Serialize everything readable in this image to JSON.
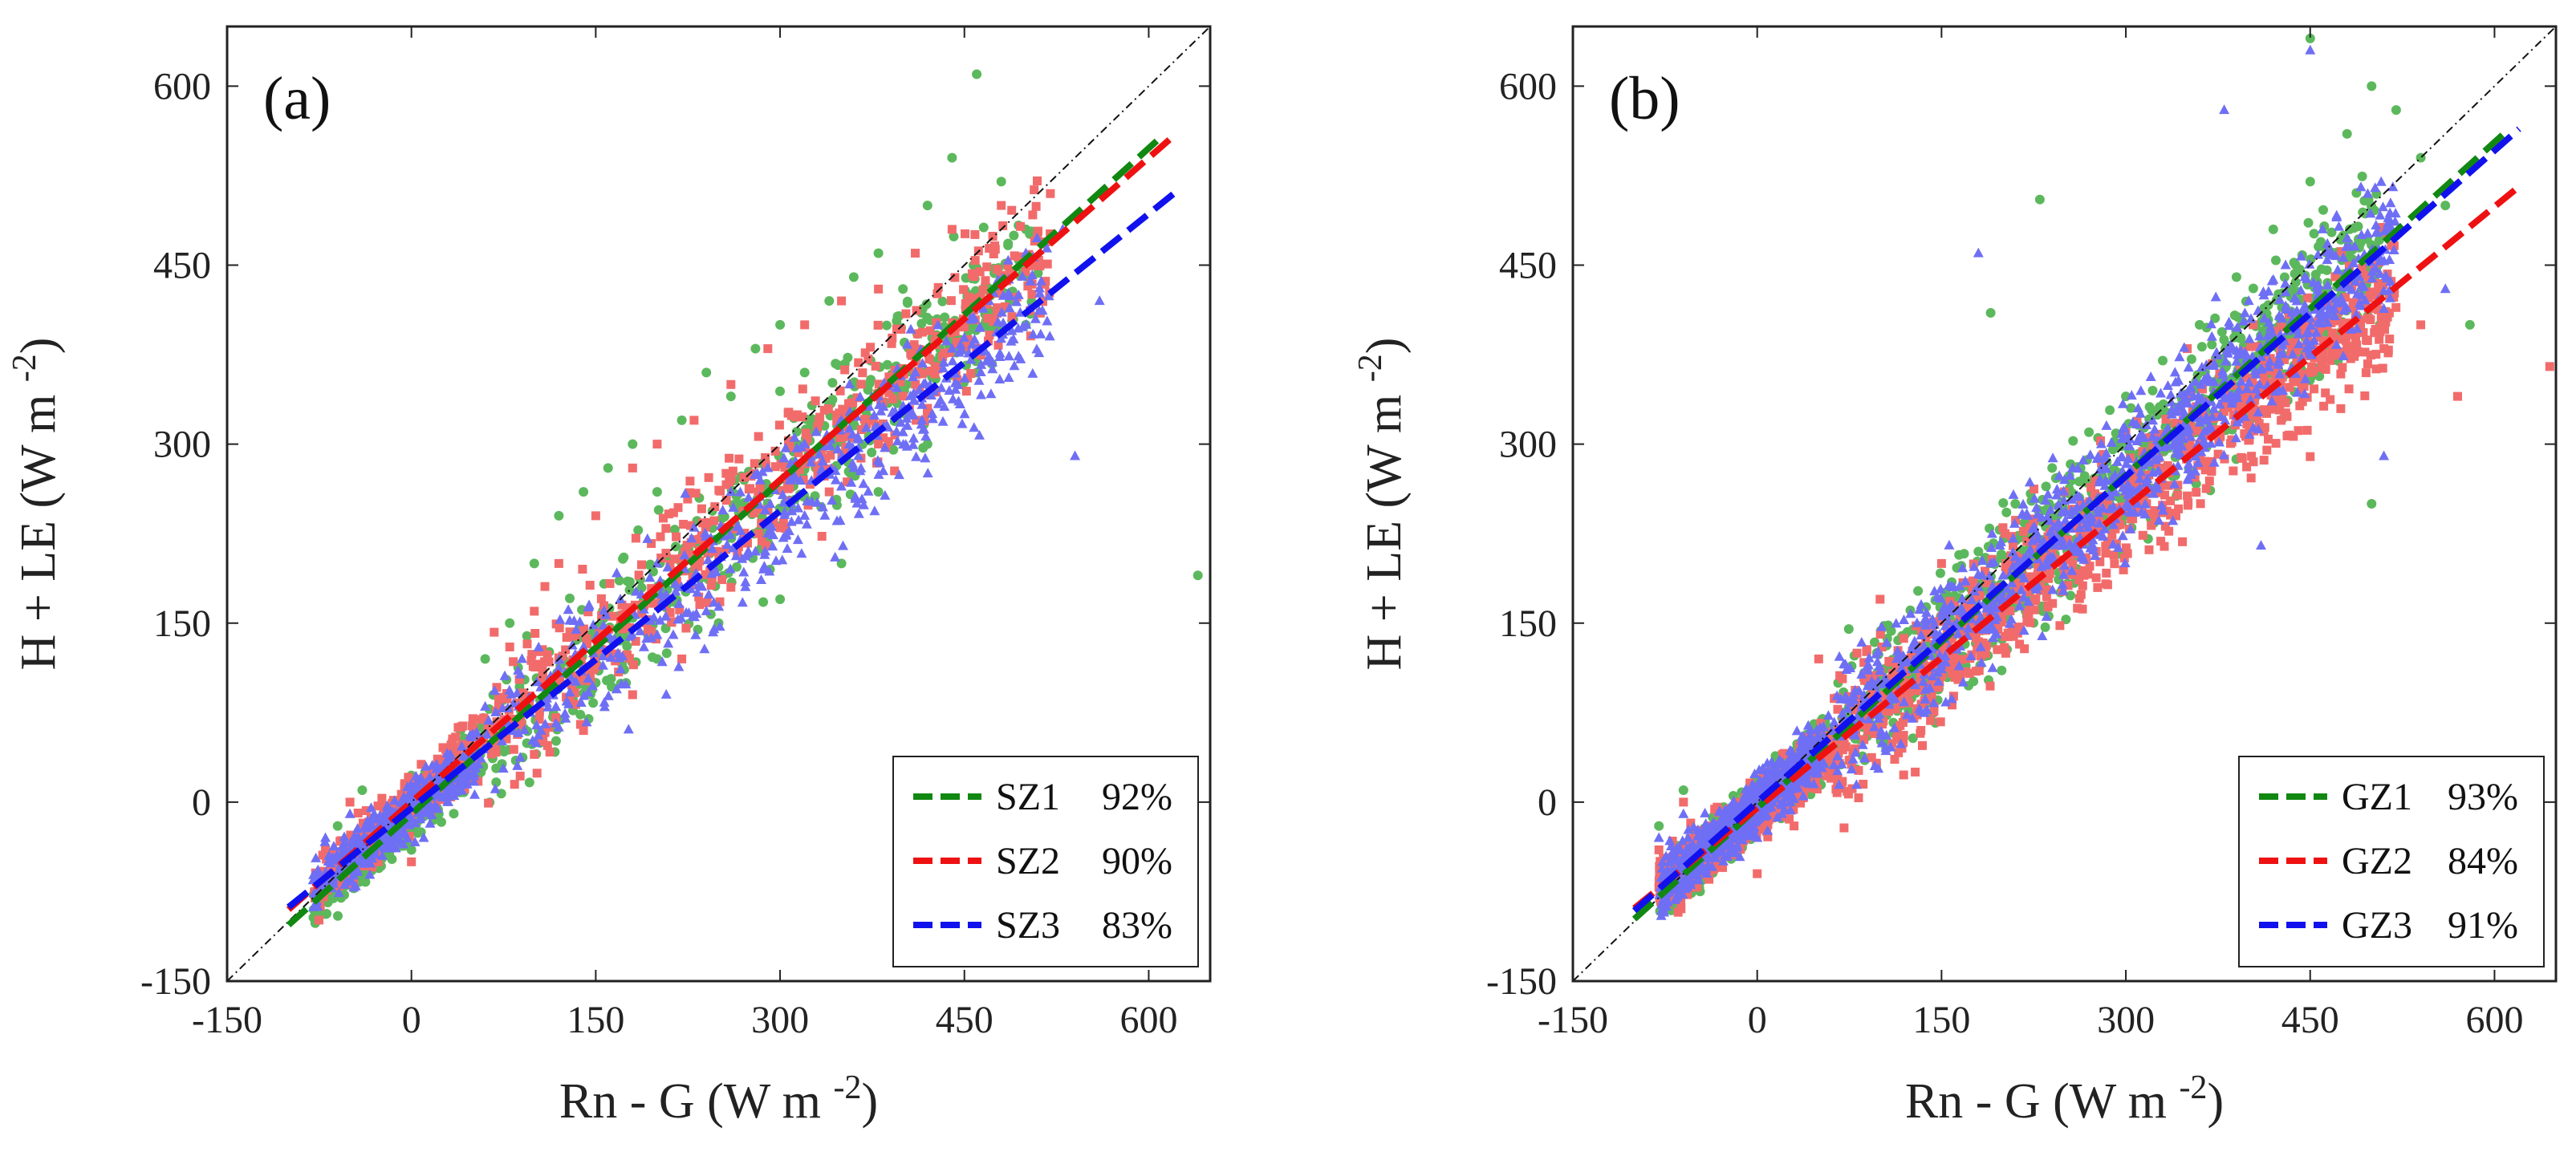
{
  "colors": {
    "scatter_green": "#5cb85c",
    "scatter_red": "#f26b6b",
    "scatter_blue": "#6f6ff5",
    "fit_green": "#118811",
    "fit_red": "#ee1111",
    "fit_blue": "#1111ee",
    "identity_line": "#111111"
  },
  "chart_data": [
    {
      "type": "scatter",
      "panel_label": "(a)",
      "xlabel": "Rn - G (W m",
      "xlabel_sup": "-2",
      "xlabel_close": ")",
      "ylabel": "H + LE (W m",
      "ylabel_sup": "-2",
      "ylabel_close": ")",
      "xlim": [
        -150,
        650
      ],
      "ylim": [
        -150,
        650
      ],
      "xticks": [
        -150,
        0,
        150,
        300,
        450,
        600
      ],
      "yticks": [
        -150,
        0,
        150,
        300,
        450,
        600
      ],
      "identity_line": true,
      "legend_position": "bottom-right",
      "series": [
        {
          "name": "SZ1",
          "percent": "92%",
          "marker": "circle",
          "point_color": "#5cb85c",
          "line_color": "#118811",
          "fit": {
            "slope": 0.93,
            "intercept": -10,
            "x_range": [
              -100,
              610
            ]
          },
          "points": [
            [
              -60,
              -20
            ],
            [
              -40,
              10
            ],
            [
              -20,
              -30
            ],
            [
              0,
              -40
            ],
            [
              20,
              -10
            ],
            [
              40,
              60
            ],
            [
              60,
              120
            ],
            [
              80,
              150
            ],
            [
              100,
              200
            ],
            [
              120,
              240
            ],
            [
              140,
              260
            ],
            [
              160,
              280
            ],
            [
              180,
              300
            ],
            [
              200,
              260
            ],
            [
              220,
              320
            ],
            [
              240,
              360
            ],
            [
              260,
              340
            ],
            [
              280,
              380
            ],
            [
              300,
              400
            ],
            [
              320,
              360
            ],
            [
              340,
              420
            ],
            [
              360,
              440
            ],
            [
              380,
              460
            ],
            [
              400,
              430
            ],
            [
              420,
              500
            ],
            [
              440,
              540
            ],
            [
              460,
              610
            ],
            [
              480,
              520
            ],
            [
              500,
              480
            ],
            [
              640,
              190
            ],
            [
              150,
              100
            ],
            [
              200,
              120
            ],
            [
              250,
              150
            ],
            [
              300,
              170
            ],
            [
              350,
              200
            ],
            [
              380,
              260
            ],
            [
              420,
              300
            ],
            [
              460,
              360
            ],
            [
              500,
              400
            ]
          ]
        },
        {
          "name": "SZ2",
          "percent": "90%",
          "marker": "square",
          "point_color": "#f26b6b",
          "line_color": "#ee1111",
          "fit": {
            "slope": 0.9,
            "intercept": 0,
            "x_range": [
              -100,
              620
            ]
          },
          "points": [
            [
              -70,
              -40
            ],
            [
              -50,
              0
            ],
            [
              -30,
              -20
            ],
            [
              0,
              -50
            ],
            [
              20,
              0
            ],
            [
              50,
              70
            ],
            [
              80,
              130
            ],
            [
              100,
              160
            ],
            [
              120,
              200
            ],
            [
              150,
              240
            ],
            [
              180,
              280
            ],
            [
              200,
              300
            ],
            [
              230,
              320
            ],
            [
              260,
              350
            ],
            [
              290,
              380
            ],
            [
              320,
              400
            ],
            [
              350,
              420
            ],
            [
              380,
              430
            ],
            [
              410,
              460
            ],
            [
              440,
              480
            ],
            [
              480,
              500
            ],
            [
              520,
              510
            ],
            [
              100,
              40
            ],
            [
              140,
              60
            ],
            [
              180,
              90
            ],
            [
              220,
              120
            ],
            [
              260,
              180
            ],
            [
              300,
              230
            ],
            [
              340,
              260
            ],
            [
              380,
              300
            ],
            [
              420,
              330
            ],
            [
              460,
              380
            ]
          ]
        },
        {
          "name": "SZ3",
          "percent": "83%",
          "marker": "triangle",
          "point_color": "#6f6ff5",
          "line_color": "#1111ee",
          "fit": {
            "slope": 0.83,
            "intercept": -5,
            "x_range": [
              -100,
              620
            ]
          },
          "points": [
            [
              -70,
              -30
            ],
            [
              -50,
              -10
            ],
            [
              -30,
              -40
            ],
            [
              -10,
              -20
            ],
            [
              10,
              -30
            ],
            [
              30,
              0
            ],
            [
              60,
              80
            ],
            [
              90,
              120
            ],
            [
              110,
              90
            ],
            [
              140,
              130
            ],
            [
              170,
              170
            ],
            [
              200,
              200
            ],
            [
              230,
              230
            ],
            [
              260,
              260
            ],
            [
              290,
              280
            ],
            [
              320,
              300
            ],
            [
              350,
              320
            ],
            [
              380,
              340
            ],
            [
              410,
              360
            ],
            [
              440,
              380
            ],
            [
              470,
              420
            ],
            [
              500,
              460
            ],
            [
              530,
              480
            ],
            [
              560,
              420
            ],
            [
              540,
              290
            ],
            [
              200,
              140
            ],
            [
              240,
              160
            ],
            [
              280,
              210
            ],
            [
              320,
              240
            ],
            [
              360,
              280
            ],
            [
              400,
              310
            ]
          ]
        }
      ]
    },
    {
      "type": "scatter",
      "panel_label": "(b)",
      "xlabel": "Rn - G (W m",
      "xlabel_sup": "-2",
      "xlabel_close": ")",
      "ylabel": "H + LE (W m",
      "ylabel_sup": "-2",
      "ylabel_close": ")",
      "xlim": [
        -150,
        650
      ],
      "ylim": [
        -150,
        650
      ],
      "xticks": [
        -150,
        0,
        150,
        300,
        450,
        600
      ],
      "yticks": [
        -150,
        0,
        150,
        300,
        450,
        600
      ],
      "identity_line": true,
      "legend_position": "bottom-right",
      "series": [
        {
          "name": "GZ1",
          "percent": "93%",
          "marker": "circle",
          "point_color": "#5cb85c",
          "line_color": "#118811",
          "fit": {
            "slope": 0.93,
            "intercept": -5,
            "x_range": [
              -100,
              610
            ]
          },
          "points": [
            [
              -80,
              -20
            ],
            [
              -60,
              10
            ],
            [
              -40,
              -30
            ],
            [
              0,
              -20
            ],
            [
              30,
              0
            ],
            [
              60,
              60
            ],
            [
              90,
              100
            ],
            [
              120,
              140
            ],
            [
              150,
              170
            ],
            [
              180,
              210
            ],
            [
              210,
              250
            ],
            [
              240,
              280
            ],
            [
              270,
              310
            ],
            [
              300,
              340
            ],
            [
              330,
              370
            ],
            [
              360,
              400
            ],
            [
              390,
              440
            ],
            [
              420,
              480
            ],
            [
              450,
              520
            ],
            [
              480,
              560
            ],
            [
              500,
              600
            ],
            [
              520,
              580
            ],
            [
              540,
              540
            ],
            [
              560,
              500
            ],
            [
              230,
              505
            ],
            [
              190,
              410
            ],
            [
              450,
              640
            ],
            [
              580,
              400
            ],
            [
              500,
              250
            ]
          ]
        },
        {
          "name": "GZ2",
          "percent": "84%",
          "marker": "square",
          "point_color": "#f26b6b",
          "line_color": "#ee1111",
          "fit": {
            "slope": 0.84,
            "intercept": -5,
            "x_range": [
              -100,
              620
            ]
          },
          "points": [
            [
              -80,
              -40
            ],
            [
              -60,
              0
            ],
            [
              -40,
              -20
            ],
            [
              0,
              -60
            ],
            [
              30,
              -20
            ],
            [
              60,
              20
            ],
            [
              90,
              60
            ],
            [
              120,
              100
            ],
            [
              150,
              120
            ],
            [
              180,
              150
            ],
            [
              210,
              180
            ],
            [
              240,
              200
            ],
            [
              270,
              230
            ],
            [
              300,
              260
            ],
            [
              330,
              280
            ],
            [
              360,
              300
            ],
            [
              390,
              320
            ],
            [
              420,
              340
            ],
            [
              450,
              360
            ],
            [
              480,
              380
            ],
            [
              510,
              380
            ],
            [
              540,
              400
            ],
            [
              570,
              340
            ],
            [
              645,
              365
            ],
            [
              50,
              120
            ],
            [
              100,
              170
            ],
            [
              150,
              200
            ],
            [
              200,
              230
            ],
            [
              250,
              260
            ],
            [
              300,
              310
            ],
            [
              350,
              380
            ]
          ]
        },
        {
          "name": "GZ3",
          "percent": "91%",
          "marker": "triangle",
          "point_color": "#6f6ff5",
          "line_color": "#1111ee",
          "fit": {
            "slope": 0.91,
            "intercept": 0,
            "x_range": [
              -100,
              620
            ]
          },
          "points": [
            [
              -80,
              -30
            ],
            [
              -60,
              -10
            ],
            [
              -40,
              -40
            ],
            [
              -20,
              -20
            ],
            [
              0,
              -30
            ],
            [
              20,
              -10
            ],
            [
              40,
              20
            ],
            [
              70,
              70
            ],
            [
              100,
              110
            ],
            [
              130,
              150
            ],
            [
              160,
              180
            ],
            [
              190,
              200
            ],
            [
              220,
              240
            ],
            [
              250,
              270
            ],
            [
              280,
              300
            ],
            [
              310,
              330
            ],
            [
              340,
              360
            ],
            [
              370,
              390
            ],
            [
              400,
              420
            ],
            [
              430,
              450
            ],
            [
              460,
              480
            ],
            [
              450,
              630
            ],
            [
              380,
              580
            ],
            [
              180,
              460
            ],
            [
              510,
              290
            ],
            [
              560,
              430
            ],
            [
              410,
              215
            ]
          ]
        }
      ]
    }
  ]
}
